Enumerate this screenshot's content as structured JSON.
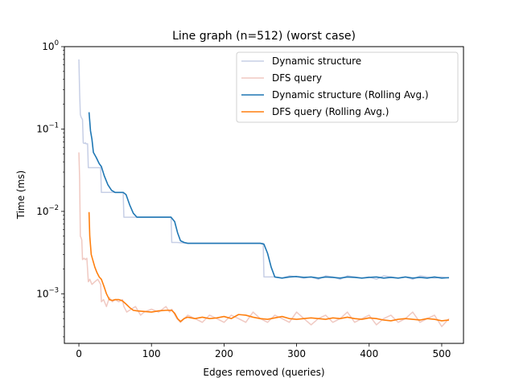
{
  "chart_data": {
    "type": "line",
    "title": "Line graph (n=512) (worst case)",
    "xlabel": "Edges removed (queries)",
    "ylabel": "Time (ms)",
    "xlim": [
      -20,
      530
    ],
    "ylim": [
      0.00025,
      1.0
    ],
    "yscale": "log",
    "x_ticks": [
      0,
      100,
      200,
      300,
      400,
      500
    ],
    "y_ticks": [
      {
        "value": 0.001,
        "base": "10",
        "exp": "−3"
      },
      {
        "value": 0.01,
        "base": "10",
        "exp": "−2"
      },
      {
        "value": 0.1,
        "base": "10",
        "exp": "−1"
      },
      {
        "value": 1,
        "base": "10",
        "exp": "0"
      }
    ],
    "legend_position": "top-right",
    "series": [
      {
        "name": "Dynamic structure",
        "color": "#c7cfe6",
        "points": [
          [
            0,
            0.7
          ],
          [
            1,
            0.28
          ],
          [
            2,
            0.15
          ],
          [
            3,
            0.14
          ],
          [
            4,
            0.135
          ],
          [
            5,
            0.13
          ],
          [
            6,
            0.068
          ],
          [
            7,
            0.067
          ],
          [
            8,
            0.067
          ],
          [
            9,
            0.068
          ],
          [
            10,
            0.066
          ],
          [
            12,
            0.066
          ],
          [
            13,
            0.034
          ],
          [
            15,
            0.034
          ],
          [
            20,
            0.034
          ],
          [
            25,
            0.034
          ],
          [
            30,
            0.034
          ],
          [
            31,
            0.017
          ],
          [
            35,
            0.017
          ],
          [
            40,
            0.017
          ],
          [
            45,
            0.017
          ],
          [
            50,
            0.017
          ],
          [
            55,
            0.017
          ],
          [
            61,
            0.017
          ],
          [
            62,
            0.0085
          ],
          [
            70,
            0.0085
          ],
          [
            80,
            0.0085
          ],
          [
            90,
            0.0085
          ],
          [
            100,
            0.0085
          ],
          [
            110,
            0.0085
          ],
          [
            120,
            0.0085
          ],
          [
            127,
            0.0085
          ],
          [
            128,
            0.0042
          ],
          [
            135,
            0.0042
          ],
          [
            150,
            0.0041
          ],
          [
            170,
            0.0041
          ],
          [
            190,
            0.0041
          ],
          [
            210,
            0.0041
          ],
          [
            230,
            0.0041
          ],
          [
            250,
            0.0041
          ],
          [
            254,
            0.0041
          ],
          [
            255,
            0.0016
          ],
          [
            270,
            0.0016
          ],
          [
            280,
            0.00155
          ],
          [
            290,
            0.00165
          ],
          [
            300,
            0.0016
          ],
          [
            310,
            0.00155
          ],
          [
            320,
            0.0016
          ],
          [
            330,
            0.0015
          ],
          [
            340,
            0.00165
          ],
          [
            350,
            0.0016
          ],
          [
            360,
            0.0015
          ],
          [
            370,
            0.00165
          ],
          [
            380,
            0.0016
          ],
          [
            390,
            0.00155
          ],
          [
            400,
            0.0016
          ],
          [
            410,
            0.0015
          ],
          [
            420,
            0.00165
          ],
          [
            430,
            0.0016
          ],
          [
            440,
            0.00155
          ],
          [
            450,
            0.0016
          ],
          [
            460,
            0.0015
          ],
          [
            470,
            0.00165
          ],
          [
            480,
            0.0016
          ],
          [
            490,
            0.00155
          ],
          [
            500,
            0.0016
          ],
          [
            510,
            0.00155
          ]
        ]
      },
      {
        "name": "DFS query",
        "color": "#f0c9c2",
        "points": [
          [
            0,
            0.052
          ],
          [
            1,
            0.025
          ],
          [
            2,
            0.005
          ],
          [
            3,
            0.0048
          ],
          [
            4,
            0.0045
          ],
          [
            5,
            0.0026
          ],
          [
            7,
            0.0027
          ],
          [
            9,
            0.0026
          ],
          [
            11,
            0.0027
          ],
          [
            13,
            0.0014
          ],
          [
            15,
            0.0015
          ],
          [
            18,
            0.0013
          ],
          [
            22,
            0.0014
          ],
          [
            26,
            0.0015
          ],
          [
            30,
            0.0013
          ],
          [
            31,
            0.0008
          ],
          [
            34,
            0.00085
          ],
          [
            38,
            0.0007
          ],
          [
            42,
            0.0009
          ],
          [
            46,
            0.0008
          ],
          [
            50,
            0.00085
          ],
          [
            55,
            0.0008
          ],
          [
            60,
            0.00085
          ],
          [
            62,
            0.0007
          ],
          [
            66,
            0.0006
          ],
          [
            72,
            0.00065
          ],
          [
            78,
            0.0007
          ],
          [
            85,
            0.00055
          ],
          [
            90,
            0.0006
          ],
          [
            100,
            0.00065
          ],
          [
            110,
            0.0006
          ],
          [
            120,
            0.0007
          ],
          [
            125,
            0.0006
          ],
          [
            128,
            0.00065
          ],
          [
            135,
            0.0005
          ],
          [
            140,
            0.00045
          ],
          [
            150,
            0.00055
          ],
          [
            160,
            0.0005
          ],
          [
            170,
            0.00045
          ],
          [
            180,
            0.00055
          ],
          [
            190,
            0.0005
          ],
          [
            200,
            0.00045
          ],
          [
            210,
            0.00055
          ],
          [
            220,
            0.0005
          ],
          [
            230,
            0.00045
          ],
          [
            240,
            0.0006
          ],
          [
            250,
            0.0005
          ],
          [
            260,
            0.00045
          ],
          [
            270,
            0.00055
          ],
          [
            280,
            0.0005
          ],
          [
            290,
            0.00045
          ],
          [
            300,
            0.0006
          ],
          [
            310,
            0.0005
          ],
          [
            320,
            0.00042
          ],
          [
            330,
            0.0005
          ],
          [
            340,
            0.00055
          ],
          [
            350,
            0.00045
          ],
          [
            360,
            0.0005
          ],
          [
            370,
            0.0006
          ],
          [
            380,
            0.00045
          ],
          [
            390,
            0.0005
          ],
          [
            400,
            0.00055
          ],
          [
            410,
            0.00042
          ],
          [
            420,
            0.0005
          ],
          [
            430,
            0.00055
          ],
          [
            440,
            0.00045
          ],
          [
            450,
            0.0005
          ],
          [
            460,
            0.0006
          ],
          [
            470,
            0.00045
          ],
          [
            480,
            0.0005
          ],
          [
            490,
            0.00055
          ],
          [
            500,
            0.0004
          ],
          [
            510,
            0.0005
          ]
        ]
      },
      {
        "name": "Dynamic structure (Rolling Avg.)",
        "color": "#1f77b4",
        "points": [
          [
            14,
            0.16
          ],
          [
            16,
            0.095
          ],
          [
            18,
            0.075
          ],
          [
            20,
            0.052
          ],
          [
            24,
            0.045
          ],
          [
            28,
            0.038
          ],
          [
            31,
            0.035
          ],
          [
            35,
            0.027
          ],
          [
            40,
            0.021
          ],
          [
            45,
            0.018
          ],
          [
            50,
            0.017
          ],
          [
            55,
            0.017
          ],
          [
            61,
            0.017
          ],
          [
            65,
            0.016
          ],
          [
            70,
            0.012
          ],
          [
            75,
            0.0095
          ],
          [
            80,
            0.0085
          ],
          [
            90,
            0.0085
          ],
          [
            100,
            0.0085
          ],
          [
            110,
            0.0085
          ],
          [
            120,
            0.0085
          ],
          [
            127,
            0.0085
          ],
          [
            132,
            0.0075
          ],
          [
            136,
            0.0055
          ],
          [
            140,
            0.0044
          ],
          [
            145,
            0.0042
          ],
          [
            150,
            0.0041
          ],
          [
            170,
            0.0041
          ],
          [
            190,
            0.0041
          ],
          [
            210,
            0.0041
          ],
          [
            230,
            0.0041
          ],
          [
            250,
            0.0041
          ],
          [
            255,
            0.004
          ],
          [
            260,
            0.0031
          ],
          [
            265,
            0.0021
          ],
          [
            270,
            0.0016
          ],
          [
            280,
            0.00155
          ],
          [
            290,
            0.0016
          ],
          [
            300,
            0.00162
          ],
          [
            310,
            0.00158
          ],
          [
            320,
            0.0016
          ],
          [
            330,
            0.00155
          ],
          [
            340,
            0.0016
          ],
          [
            350,
            0.00158
          ],
          [
            360,
            0.00155
          ],
          [
            370,
            0.0016
          ],
          [
            380,
            0.00158
          ],
          [
            390,
            0.00155
          ],
          [
            400,
            0.00158
          ],
          [
            410,
            0.0016
          ],
          [
            420,
            0.00155
          ],
          [
            430,
            0.00158
          ],
          [
            440,
            0.00155
          ],
          [
            450,
            0.0016
          ],
          [
            460,
            0.00155
          ],
          [
            470,
            0.00158
          ],
          [
            480,
            0.00155
          ],
          [
            490,
            0.0016
          ],
          [
            500,
            0.00155
          ],
          [
            510,
            0.00157
          ]
        ]
      },
      {
        "name": "DFS query (Rolling Avg.)",
        "color": "#ff7f0e",
        "points": [
          [
            14,
            0.0098
          ],
          [
            15,
            0.005
          ],
          [
            17,
            0.003
          ],
          [
            19,
            0.0026
          ],
          [
            22,
            0.0021
          ],
          [
            25,
            0.0018
          ],
          [
            28,
            0.0016
          ],
          [
            31,
            0.0015
          ],
          [
            35,
            0.0012
          ],
          [
            38,
            0.001
          ],
          [
            42,
            0.00085
          ],
          [
            46,
            0.00083
          ],
          [
            50,
            0.00085
          ],
          [
            55,
            0.00085
          ],
          [
            60,
            0.00082
          ],
          [
            65,
            0.00075
          ],
          [
            70,
            0.00068
          ],
          [
            75,
            0.00063
          ],
          [
            80,
            0.00062
          ],
          [
            90,
            0.00061
          ],
          [
            100,
            0.0006
          ],
          [
            110,
            0.00062
          ],
          [
            120,
            0.00063
          ],
          [
            128,
            0.00063
          ],
          [
            132,
            0.00058
          ],
          [
            136,
            0.0005
          ],
          [
            140,
            0.00046
          ],
          [
            145,
            0.0005
          ],
          [
            150,
            0.00052
          ],
          [
            160,
            0.0005
          ],
          [
            170,
            0.00052
          ],
          [
            180,
            0.0005
          ],
          [
            190,
            0.00051
          ],
          [
            200,
            0.00053
          ],
          [
            210,
            0.0005
          ],
          [
            220,
            0.00056
          ],
          [
            230,
            0.00055
          ],
          [
            240,
            0.00052
          ],
          [
            250,
            0.0005
          ],
          [
            260,
            0.00049
          ],
          [
            270,
            0.00051
          ],
          [
            280,
            0.00053
          ],
          [
            290,
            0.0005
          ],
          [
            300,
            0.00049
          ],
          [
            310,
            0.0005
          ],
          [
            320,
            0.00051
          ],
          [
            330,
            0.0005
          ],
          [
            340,
            0.00049
          ],
          [
            350,
            0.00051
          ],
          [
            360,
            0.0005
          ],
          [
            370,
            0.00052
          ],
          [
            380,
            0.0005
          ],
          [
            390,
            0.00049
          ],
          [
            400,
            0.00051
          ],
          [
            410,
            0.0005
          ],
          [
            420,
            0.00048
          ],
          [
            430,
            0.00047
          ],
          [
            440,
            0.00049
          ],
          [
            450,
            0.0005
          ],
          [
            460,
            0.00049
          ],
          [
            470,
            0.00048
          ],
          [
            480,
            0.0005
          ],
          [
            490,
            0.00049
          ],
          [
            500,
            0.00047
          ],
          [
            510,
            0.00048
          ]
        ]
      }
    ]
  }
}
